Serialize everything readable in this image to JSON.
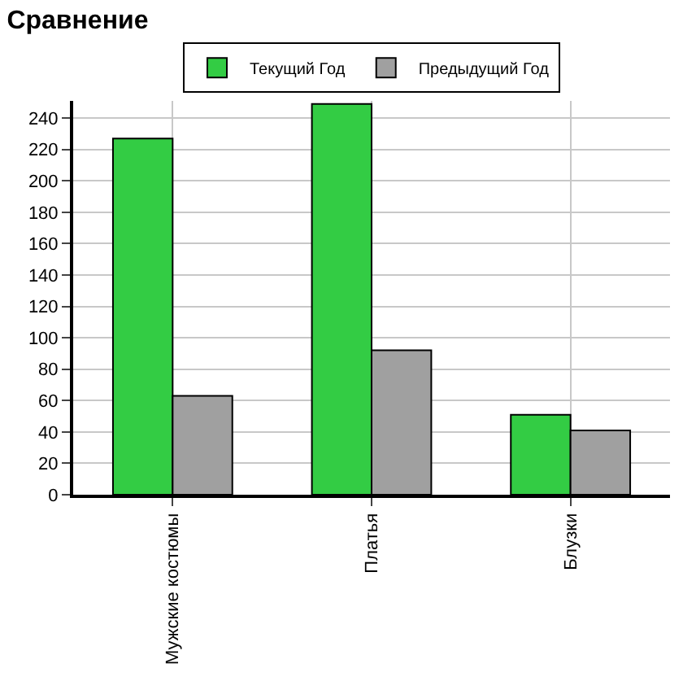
{
  "chart_data": {
    "type": "bar",
    "title": "Сравнение",
    "categories": [
      "Мужские костюмы",
      "Платья",
      "Блузки"
    ],
    "series": [
      {
        "name": "Текущий Год",
        "color": "#33cc44",
        "values": [
          227,
          249,
          51
        ]
      },
      {
        "name": "Предыдущий Год",
        "color": "#a0a0a0",
        "values": [
          63,
          92,
          41
        ]
      }
    ],
    "ylim": [
      0,
      251
    ],
    "yticks": [
      0,
      20,
      40,
      60,
      80,
      100,
      120,
      140,
      160,
      180,
      200,
      220,
      240
    ],
    "grid": true,
    "legend": "top"
  }
}
